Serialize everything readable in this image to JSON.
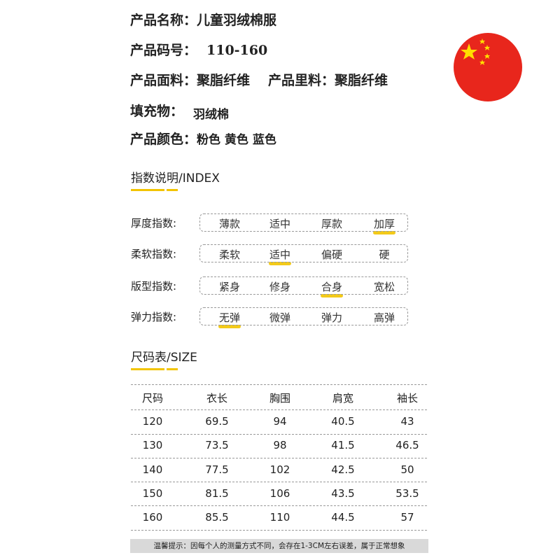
{
  "product": {
    "name_label": "产品名称：",
    "name": "儿童羽绒棉服",
    "code_label": "产品码号：",
    "code": "110-160",
    "fabric_label": "产品面料：",
    "fabric": "聚脂纤维",
    "lining_label": "产品里料：",
    "lining": "聚脂纤维",
    "filling_label": "填充物：",
    "filling": "羽绒棉",
    "colors_label": "产品颜色：",
    "colors": "粉色 黄色 蓝色"
  },
  "flag": {
    "icon": "china-flag-icon",
    "colors": {
      "red": "#e8261c",
      "star": "#ffde00"
    }
  },
  "index": {
    "title": "指数说明/INDEX",
    "rows": [
      {
        "label": "厚度指数:",
        "options": [
          "薄款",
          "适中",
          "厚款",
          "加厚"
        ],
        "selected": 3
      },
      {
        "label": "柔软指数:",
        "options": [
          "柔软",
          "适中",
          "偏硬",
          "硬"
        ],
        "selected": 1
      },
      {
        "label": "版型指数:",
        "options": [
          "紧身",
          "修身",
          "合身",
          "宽松"
        ],
        "selected": 2
      },
      {
        "label": "弹力指数:",
        "options": [
          "无弹",
          "微弹",
          "弹力",
          "高弹"
        ],
        "selected": 0
      }
    ]
  },
  "size": {
    "title": "尺码表/SIZE",
    "headers": [
      "尺码",
      "衣长",
      "胸围",
      "肩宽",
      "袖长"
    ],
    "rows": [
      [
        "120",
        "69.5",
        "94",
        "40.5",
        "43"
      ],
      [
        "130",
        "73.5",
        "98",
        "41.5",
        "46.5"
      ],
      [
        "140",
        "77.5",
        "102",
        "42.5",
        "50"
      ],
      [
        "150",
        "81.5",
        "106",
        "43.5",
        "53.5"
      ],
      [
        "160",
        "85.5",
        "110",
        "44.5",
        "57"
      ]
    ]
  },
  "note": "温馨提示：因每个人的测量方式不同，会存在1-3CM左右误差，属于正常想象",
  "accent": "#f2c400"
}
